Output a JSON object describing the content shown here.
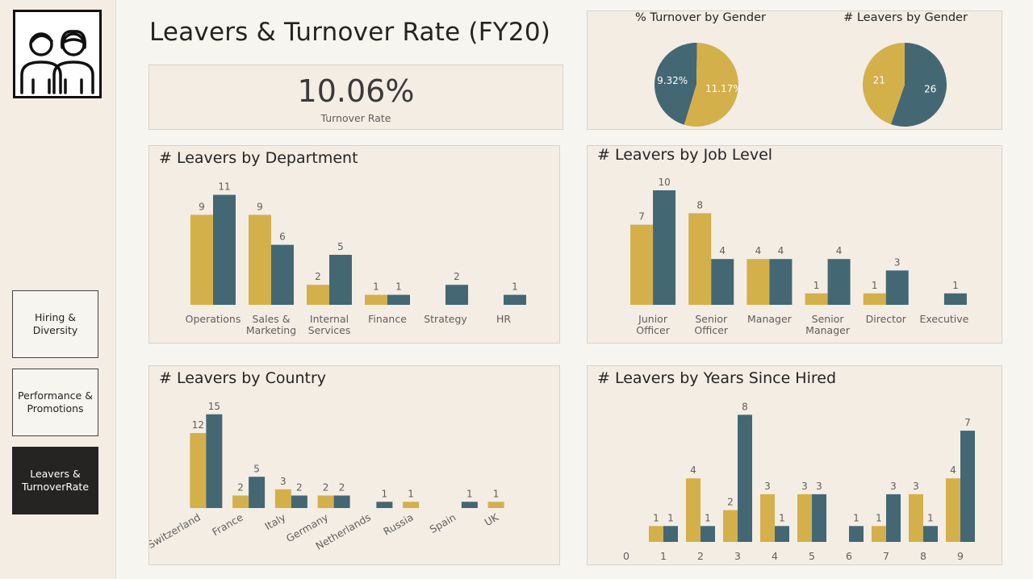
{
  "nav": {
    "items": [
      {
        "label": "Hiring &\nDiversity",
        "active": false
      },
      {
        "label": "Performance &\nPromotions",
        "active": false
      },
      {
        "label": "Leavers &\nTurnoverRate",
        "active": true
      }
    ]
  },
  "logo_icon": "two-people-icon",
  "page": {
    "title": "Leavers & Turnover Rate (FY20)"
  },
  "kpi": {
    "value": "10.06%",
    "label": "Turnover Rate"
  },
  "colors": {
    "series_a": "#d4b04b",
    "series_b": "#436873",
    "panel_bg": "#f3ede4"
  },
  "chart_data": [
    {
      "id": "turnover_gender",
      "type": "pie",
      "title": "% Turnover by Gender",
      "slices": [
        {
          "label": "9.32%",
          "value": 9.32,
          "color": "#436873"
        },
        {
          "label": "11.17%",
          "value": 11.17,
          "color": "#d4b04b"
        }
      ]
    },
    {
      "id": "leavers_gender",
      "type": "pie",
      "title": "# Leavers by Gender",
      "slices": [
        {
          "label": "26",
          "value": 26,
          "color": "#436873"
        },
        {
          "label": "21",
          "value": 21,
          "color": "#d4b04b"
        }
      ]
    },
    {
      "id": "department",
      "type": "bar",
      "title": "# Leavers by Department",
      "categories": [
        "Operations",
        "Sales &\nMarketing",
        "Internal\nServices",
        "Finance",
        "Strategy",
        "HR"
      ],
      "series": [
        {
          "values": [
            9,
            9,
            2,
            1,
            null,
            null
          ],
          "color": "#d4b04b"
        },
        {
          "values": [
            11,
            6,
            5,
            1,
            2,
            1
          ],
          "color": "#436873"
        }
      ]
    },
    {
      "id": "job_level",
      "type": "bar",
      "title": "# Leavers by Job Level",
      "categories": [
        "Junior\nOfficer",
        "Senior\nOfficer",
        "Manager",
        "Senior\nManager",
        "Director",
        "Executive"
      ],
      "series": [
        {
          "values": [
            7,
            8,
            4,
            1,
            1,
            null
          ],
          "color": "#d4b04b"
        },
        {
          "values": [
            10,
            4,
            4,
            4,
            3,
            1
          ],
          "color": "#436873"
        }
      ]
    },
    {
      "id": "country",
      "type": "bar",
      "title": "# Leavers by Country",
      "categories": [
        "Switzerland",
        "France",
        "Italy",
        "Germany",
        "Netherlands",
        "Russia",
        "Spain",
        "UK"
      ],
      "series": [
        {
          "values": [
            12,
            2,
            3,
            2,
            null,
            1,
            null,
            1
          ],
          "color": "#d4b04b"
        },
        {
          "values": [
            15,
            5,
            2,
            2,
            1,
            null,
            1,
            null
          ],
          "color": "#436873"
        }
      ]
    },
    {
      "id": "years_hired",
      "type": "bar",
      "title": "# Leavers by Years Since Hired",
      "categories": [
        "0",
        "1",
        "2",
        "3",
        "4",
        "5",
        "6",
        "7",
        "8",
        "9"
      ],
      "series": [
        {
          "values": [
            null,
            1,
            4,
            2,
            3,
            3,
            null,
            1,
            3,
            4
          ],
          "color": "#d4b04b"
        },
        {
          "values": [
            null,
            1,
            1,
            8,
            1,
            3,
            1,
            3,
            1,
            7
          ],
          "color": "#436873"
        }
      ]
    }
  ]
}
